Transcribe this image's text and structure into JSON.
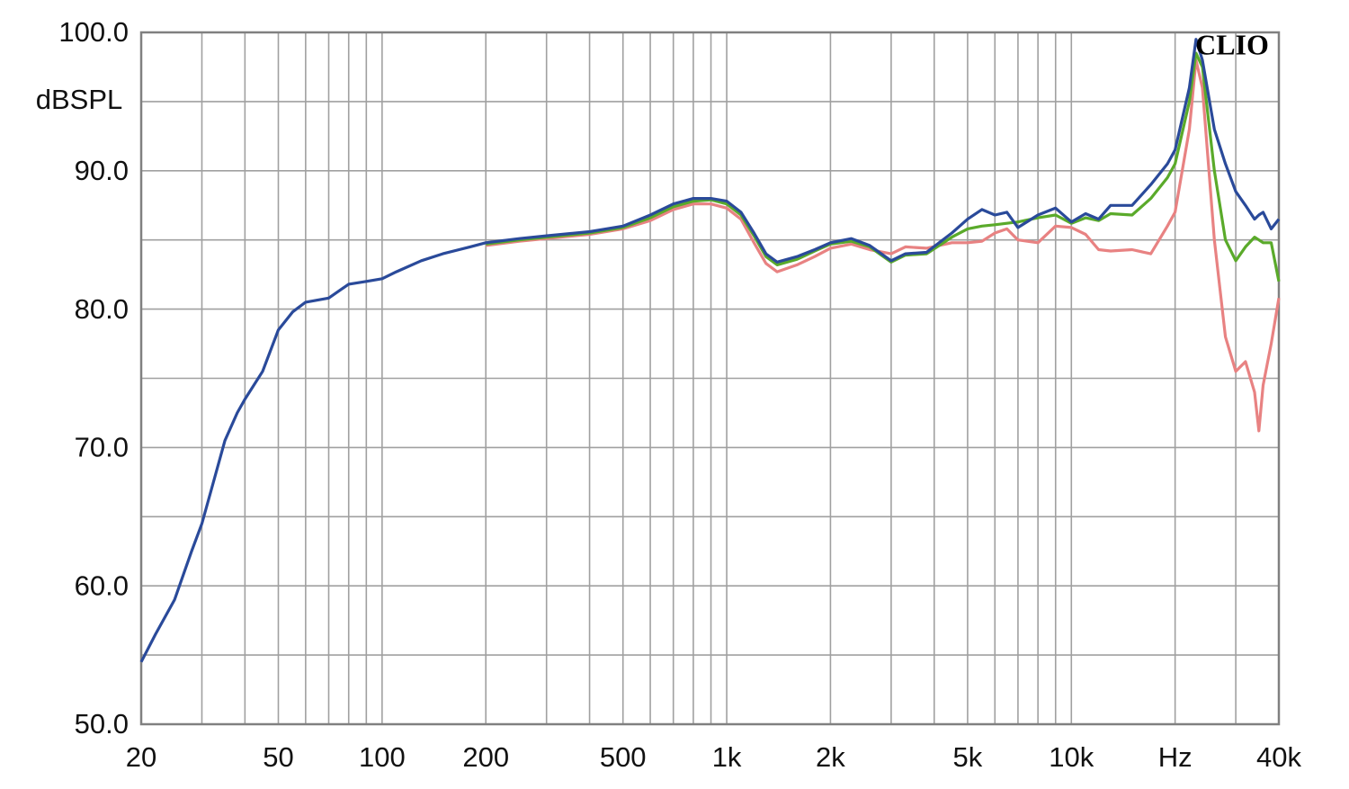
{
  "chart_data": {
    "type": "line",
    "ylabel": "dBSPL",
    "annotation": "CLIO",
    "xscale": "log",
    "grid": true,
    "xlim": [
      20,
      40000
    ],
    "ylim": [
      50,
      100
    ],
    "xticks": [
      20,
      50,
      100,
      200,
      500,
      {
        "value": 1000,
        "label": "1k"
      },
      {
        "value": 2000,
        "label": "2k"
      },
      {
        "value": 5000,
        "label": "5k"
      },
      {
        "value": 10000,
        "label": "10k"
      },
      {
        "value": 20000,
        "label": "Hz"
      },
      {
        "value": 40000,
        "label": "40k"
      }
    ],
    "xminor": [
      30,
      40,
      60,
      70,
      80,
      90,
      300,
      400,
      600,
      700,
      800,
      900,
      3000,
      4000,
      6000,
      7000,
      8000,
      9000,
      30000
    ],
    "yticks": [
      {
        "value": 50,
        "label": "50.0"
      },
      {
        "value": 60,
        "label": "60.0"
      },
      {
        "value": 70,
        "label": "70.0"
      },
      {
        "value": 80,
        "label": "80.0"
      },
      {
        "value": 90,
        "label": "90.0"
      },
      {
        "value": 100,
        "label": "100.0"
      }
    ],
    "yminor": [
      55,
      65,
      75,
      85,
      95
    ],
    "x": [
      20,
      22,
      25,
      28,
      30,
      32,
      35,
      38,
      40,
      45,
      50,
      55,
      60,
      70,
      80,
      90,
      100,
      110,
      130,
      150,
      180,
      200,
      250,
      300,
      400,
      500,
      600,
      700,
      800,
      900,
      1000,
      1100,
      1200,
      1300,
      1400,
      1600,
      1800,
      2000,
      2300,
      2600,
      3000,
      3300,
      3800,
      4500,
      5000,
      5500,
      6000,
      6500,
      7000,
      8000,
      9000,
      10000,
      11000,
      12000,
      13000,
      15000,
      17000,
      19000,
      20000,
      22000,
      23000,
      24000,
      26000,
      28000,
      30000,
      32000,
      34000,
      35000,
      36000,
      38000,
      40000
    ],
    "series": [
      {
        "color": "#e88282",
        "values": [
          null,
          null,
          null,
          null,
          null,
          null,
          null,
          null,
          null,
          null,
          null,
          null,
          null,
          null,
          null,
          null,
          null,
          null,
          null,
          null,
          null,
          84.6,
          84.9,
          85.1,
          85.4,
          85.8,
          86.4,
          87.2,
          87.6,
          87.6,
          87.3,
          86.5,
          84.8,
          83.3,
          82.7,
          83.2,
          83.8,
          84.4,
          84.7,
          84.3,
          84,
          84.5,
          84.4,
          84.8,
          84.8,
          84.9,
          85.5,
          85.8,
          85,
          84.8,
          86,
          85.9,
          85.4,
          84.3,
          84.2,
          84.3,
          84,
          86,
          87,
          93,
          98,
          96,
          85,
          78,
          75.5,
          76.2,
          74,
          71.2,
          74.5,
          77.5,
          80.8
        ]
      },
      {
        "color": "#5aaa2a",
        "values": [
          null,
          null,
          null,
          null,
          null,
          null,
          null,
          null,
          null,
          null,
          null,
          null,
          null,
          null,
          null,
          null,
          null,
          null,
          null,
          null,
          null,
          84.7,
          85,
          85.2,
          85.5,
          85.9,
          86.6,
          87.4,
          87.8,
          87.9,
          87.6,
          86.8,
          85.3,
          83.8,
          83.2,
          83.6,
          84.2,
          84.7,
          84.9,
          84.5,
          83.4,
          83.9,
          84,
          85.2,
          85.8,
          86,
          86.1,
          86.2,
          86.3,
          86.6,
          86.8,
          86.2,
          86.6,
          86.4,
          86.9,
          86.8,
          88,
          89.5,
          90.5,
          95,
          98.5,
          97.5,
          90,
          85,
          83.5,
          84.5,
          85.2,
          85,
          84.8,
          84.8,
          82
        ]
      },
      {
        "color": "#2a4a9a",
        "values": [
          54.5,
          56.5,
          59,
          62.5,
          64.5,
          67,
          70.5,
          72.5,
          73.5,
          75.5,
          78.5,
          79.8,
          80.5,
          80.8,
          81.8,
          82,
          82.2,
          82.7,
          83.5,
          84,
          84.5,
          84.8,
          85.1,
          85.3,
          85.6,
          86,
          86.8,
          87.6,
          88,
          88,
          87.8,
          87,
          85.5,
          84,
          83.4,
          83.8,
          84.3,
          84.8,
          85.1,
          84.6,
          83.5,
          84,
          84.1,
          85.5,
          86.5,
          87.2,
          86.8,
          87,
          85.9,
          86.8,
          87.3,
          86.3,
          86.9,
          86.5,
          87.5,
          87.5,
          89,
          90.5,
          91.5,
          96,
          99.5,
          98,
          93,
          90.5,
          88.5,
          87.5,
          86.5,
          86.8,
          87,
          85.8,
          86.5
        ]
      }
    ]
  }
}
